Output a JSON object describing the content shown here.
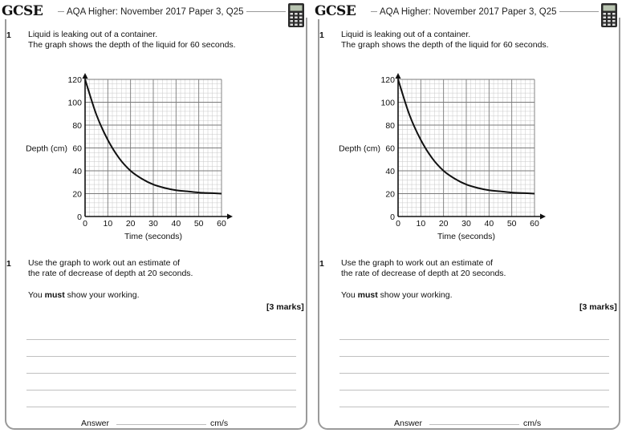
{
  "header": {
    "logo": "GCSE",
    "title": "AQA Higher: November 2017 Paper 3, Q25",
    "icon": "calculator-icon"
  },
  "question": {
    "part1_number": "1",
    "intro_line1": "Liquid is leaking out of a container.",
    "intro_line2": "The graph shows the depth of the liquid for 60 seconds.",
    "part2_number": "1",
    "task_line1": "Use the graph to work out an estimate of",
    "task_line2": "the rate of decrease of depth at 20 seconds.",
    "working_prefix": "You ",
    "working_bold": "must",
    "working_suffix": " show your working.",
    "marks": "[3 marks]"
  },
  "answer": {
    "label": "Answer",
    "unit": "cm/s"
  },
  "chart_data": {
    "type": "line",
    "xlabel": "Time (seconds)",
    "ylabel": "Depth (cm)",
    "xlim": [
      0,
      60
    ],
    "ylim": [
      0,
      120
    ],
    "x_ticks": [
      "0",
      "10",
      "20",
      "30",
      "40",
      "50",
      "60"
    ],
    "y_ticks": [
      "0",
      "20",
      "40",
      "60",
      "80",
      "100",
      "120"
    ],
    "grid": true,
    "series": [
      {
        "x": [
          0,
          5,
          10,
          15,
          20,
          25,
          30,
          35,
          40,
          45,
          50,
          55,
          60
        ],
        "y": [
          120,
          89,
          67,
          51,
          40,
          33,
          28,
          25,
          23,
          22,
          21,
          20.5,
          20
        ]
      }
    ]
  }
}
